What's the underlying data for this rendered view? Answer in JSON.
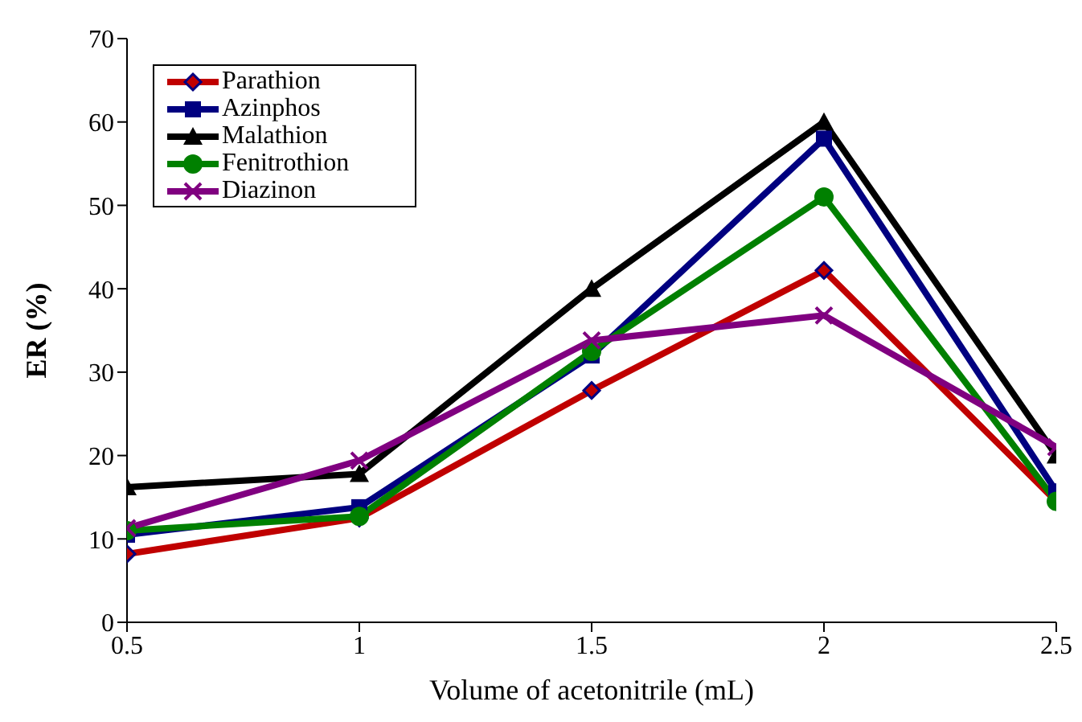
{
  "chart_data": {
    "type": "line",
    "xlabel": "Volume of acetonitrile (mL)",
    "ylabel": "ER (%)",
    "x": [
      0.5,
      1,
      1.5,
      2,
      2.5
    ],
    "xlim": [
      0.5,
      2.5
    ],
    "xticks": [
      0.5,
      1,
      1.5,
      2,
      2.5
    ],
    "ylim": [
      0,
      70
    ],
    "yticks": [
      0,
      10,
      20,
      30,
      40,
      50,
      60,
      70
    ],
    "grid": false,
    "legend": "top left",
    "line_style": "solid",
    "series": [
      {
        "name": "Parathion",
        "color": "#c00000",
        "marker": "diamond",
        "values": [
          8.2,
          12.5,
          27.8,
          42.2,
          14.5
        ]
      },
      {
        "name": "Azinphos",
        "color": "#000080",
        "marker": "square",
        "values": [
          10.5,
          13.8,
          32,
          58,
          15.7
        ]
      },
      {
        "name": "Malathion",
        "color": "#000000",
        "marker": "triangle",
        "values": [
          16.2,
          17.8,
          40,
          60,
          20
        ]
      },
      {
        "name": "Fenitrothion",
        "color": "#008000",
        "marker": "circle",
        "values": [
          11,
          12.7,
          32.5,
          51,
          14.5
        ]
      },
      {
        "name": "Diazinon",
        "color": "#800080",
        "marker": "cross",
        "values": [
          11.3,
          19.4,
          33.8,
          36.8,
          21
        ]
      }
    ]
  }
}
